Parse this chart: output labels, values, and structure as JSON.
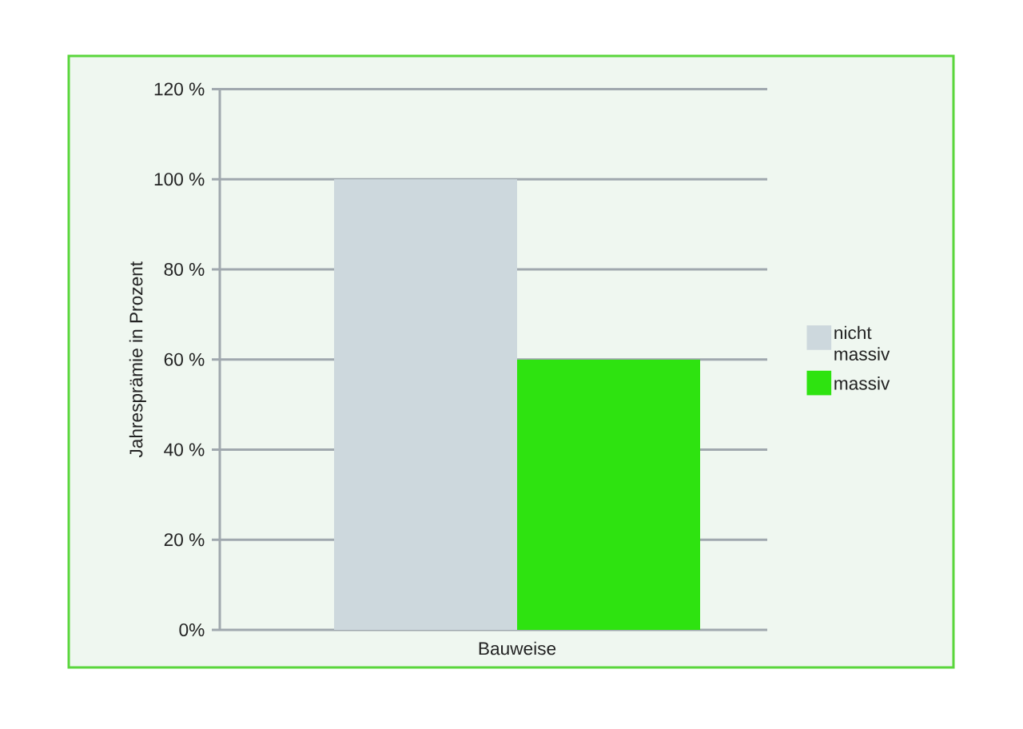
{
  "chart_data": {
    "type": "bar",
    "ylabel": "Jahresprämie in Prozent",
    "categories": [
      "Bauweise"
    ],
    "series": [
      {
        "name": "nicht massiv",
        "color": "#cdd8dd",
        "values": [
          100
        ]
      },
      {
        "name": "massiv",
        "color": "#2ee310",
        "values": [
          60
        ]
      }
    ],
    "ylim": [
      0,
      120
    ],
    "yticks": [
      {
        "value": 0,
        "label": "0%"
      },
      {
        "value": 20,
        "label": "20 %"
      },
      {
        "value": 40,
        "label": "40 %"
      },
      {
        "value": 60,
        "label": "60 %"
      },
      {
        "value": 80,
        "label": "80 %"
      },
      {
        "value": 100,
        "label": "100 %"
      },
      {
        "value": 120,
        "label": "120 %"
      }
    ],
    "grid": "y",
    "legend": "right"
  }
}
